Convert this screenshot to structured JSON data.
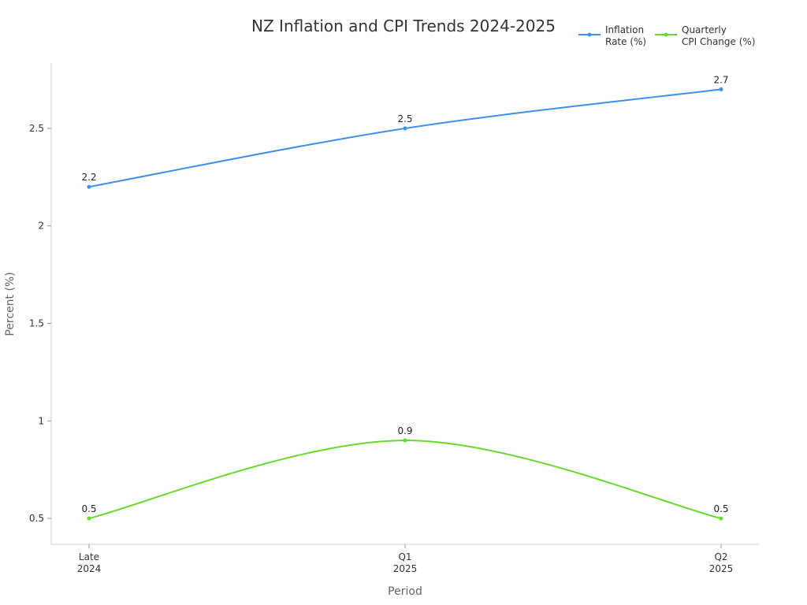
{
  "chart_data": {
    "type": "line",
    "title": "NZ Inflation and CPI Trends 2024-2025",
    "xlabel": "Period",
    "ylabel": "Percent (%)",
    "categories": [
      [
        "Late",
        "2024"
      ],
      [
        "Q1",
        "2025"
      ],
      [
        "Q2",
        "2025"
      ]
    ],
    "ylim": [
      0.367,
      2.835
    ],
    "yticks": [
      "0.5",
      "1",
      "1.5",
      "2",
      "2.5"
    ],
    "ytick_values": [
      0.5,
      1,
      1.5,
      2,
      2.5
    ],
    "grid": false,
    "legend_position": "top-right",
    "series": [
      {
        "name": [
          "Inflation",
          "Rate (%)"
        ],
        "values": [
          2.2,
          2.5,
          2.7
        ],
        "labels": [
          "2.2",
          "2.5",
          "2.7"
        ],
        "color": "#3b8fe8"
      },
      {
        "name": [
          "Quarterly",
          "CPI Change (%)"
        ],
        "values": [
          0.5,
          0.9,
          0.5
        ],
        "labels": [
          "0.5",
          "0.9",
          "0.5"
        ],
        "color": "#66d92a"
      }
    ]
  }
}
